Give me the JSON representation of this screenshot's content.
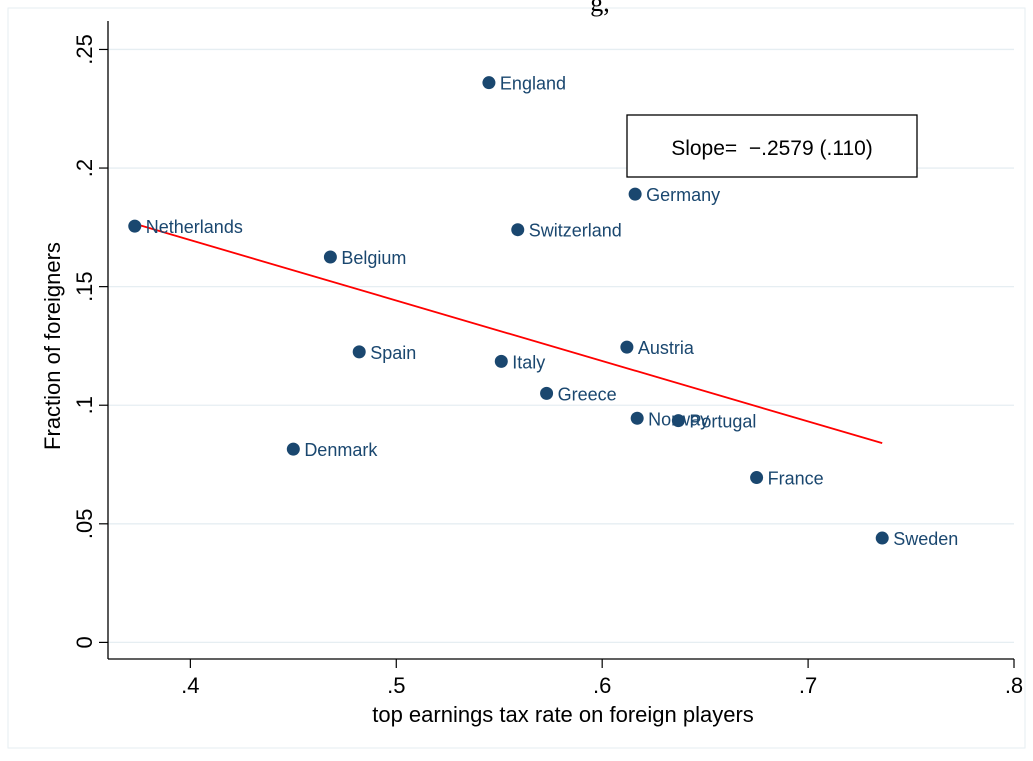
{
  "chart_data": {
    "type": "scatter",
    "title": "",
    "xlabel": "top earnings tax rate on foreign players",
    "ylabel": "Fraction of foreigners",
    "xlim": [
      0.36,
      0.8
    ],
    "ylim": [
      -0.007,
      0.262
    ],
    "xticks": [
      {
        "value": 0.4,
        "label": ".4"
      },
      {
        "value": 0.5,
        "label": ".5"
      },
      {
        "value": 0.6,
        "label": ".6"
      },
      {
        "value": 0.7,
        "label": ".7"
      },
      {
        "value": 0.8,
        "label": ".8"
      }
    ],
    "yticks": [
      {
        "value": 0,
        "label": "0"
      },
      {
        "value": 0.05,
        "label": ".05"
      },
      {
        "value": 0.1,
        "label": ".1"
      },
      {
        "value": 0.15,
        "label": ".15"
      },
      {
        "value": 0.2,
        "label": ".2"
      },
      {
        "value": 0.25,
        "label": ".25"
      }
    ],
    "grid": "horizontal",
    "point_color": "#1a476f",
    "fit_line_color": "#ff0000",
    "points": [
      {
        "label": "England",
        "x": 0.545,
        "y": 0.236
      },
      {
        "label": "Germany",
        "x": 0.616,
        "y": 0.189
      },
      {
        "label": "Netherlands",
        "x": 0.373,
        "y": 0.1755
      },
      {
        "label": "Switzerland",
        "x": 0.559,
        "y": 0.174
      },
      {
        "label": "Belgium",
        "x": 0.468,
        "y": 0.1625
      },
      {
        "label": "Austria",
        "x": 0.612,
        "y": 0.1245
      },
      {
        "label": "Spain",
        "x": 0.482,
        "y": 0.1225
      },
      {
        "label": "Italy",
        "x": 0.551,
        "y": 0.1185
      },
      {
        "label": "Greece",
        "x": 0.573,
        "y": 0.105
      },
      {
        "label": "Norway",
        "x": 0.617,
        "y": 0.0945
      },
      {
        "label": "Portugal",
        "x": 0.637,
        "y": 0.0935
      },
      {
        "label": "Denmark",
        "x": 0.45,
        "y": 0.0815
      },
      {
        "label": "France",
        "x": 0.675,
        "y": 0.0695
      },
      {
        "label": "Sweden",
        "x": 0.736,
        "y": 0.044
      }
    ],
    "fit_line": {
      "x": [
        0.373,
        0.736
      ],
      "y": [
        0.1765,
        0.084
      ]
    },
    "annotation": "Slope=  −.2579 (.110)"
  }
}
